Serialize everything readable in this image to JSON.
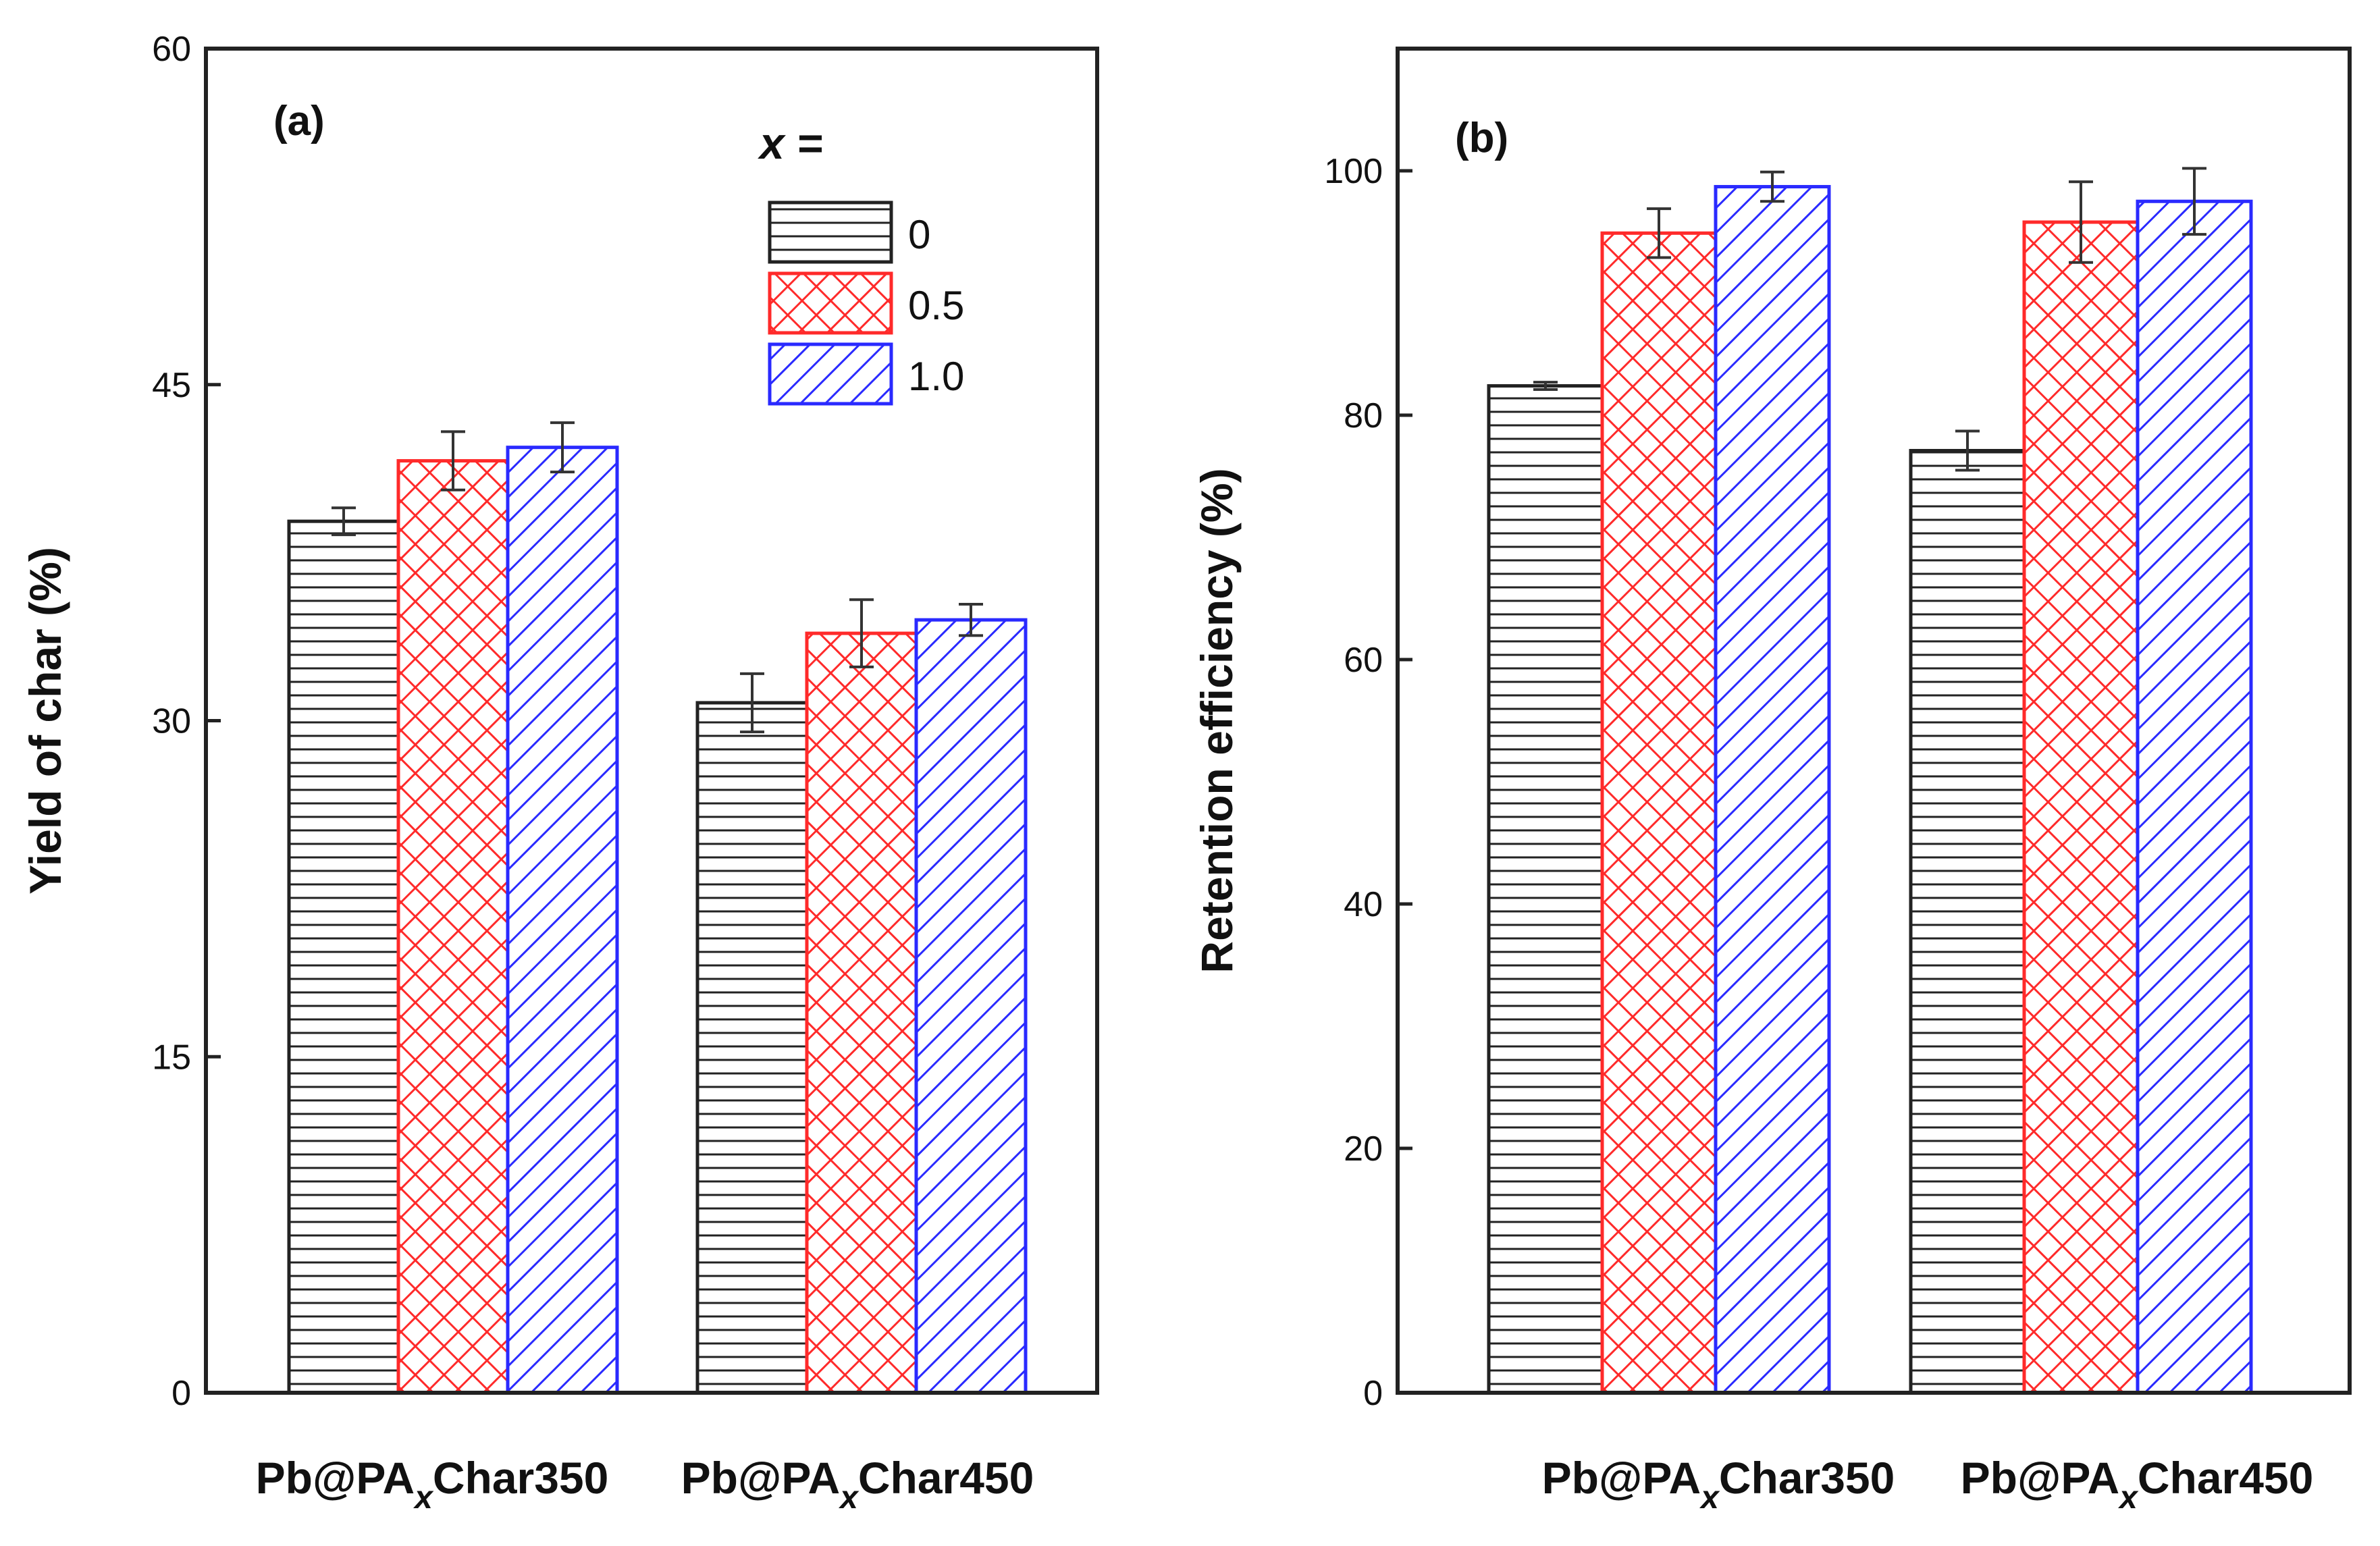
{
  "chart_data": [
    {
      "type": "bar",
      "panel_label": "(a)",
      "ylabel": "Yield of char (%)",
      "ylim": [
        0,
        60
      ],
      "yticks": [
        0,
        15,
        30,
        45,
        60
      ],
      "categories": [
        {
          "prefix": "Pb@PA",
          "sub": "x",
          "suffix": "Char350"
        },
        {
          "prefix": "Pb@PA",
          "sub": "x",
          "suffix": "Char450"
        }
      ],
      "series": [
        {
          "name": "0",
          "color": "#222222",
          "pattern": "horizontal-lines",
          "values": [
            38.9,
            30.8
          ],
          "errors": [
            0.6,
            1.3
          ]
        },
        {
          "name": "0.5",
          "color": "#ff2a2a",
          "pattern": "crosshatch",
          "values": [
            41.6,
            33.9
          ],
          "errors": [
            1.3,
            1.5
          ]
        },
        {
          "name": "1.0",
          "color": "#2a2aff",
          "pattern": "diagonal-lines",
          "values": [
            42.2,
            34.5
          ],
          "errors": [
            1.1,
            0.7
          ]
        }
      ],
      "legend": {
        "title": "x =",
        "position": "top-right"
      }
    },
    {
      "type": "bar",
      "panel_label": "(b)",
      "ylabel": "Retention efficiency (%)",
      "ylim": [
        0,
        110
      ],
      "yticks": [
        0,
        20,
        40,
        60,
        80,
        100
      ],
      "categories": [
        {
          "prefix": "Pb@PA",
          "sub": "x",
          "suffix": "Char350"
        },
        {
          "prefix": "Pb@PA",
          "sub": "x",
          "suffix": "Char450"
        }
      ],
      "series": [
        {
          "name": "0",
          "color": "#222222",
          "pattern": "horizontal-lines",
          "values": [
            82.4,
            77.1
          ],
          "errors": [
            0.3,
            1.6
          ]
        },
        {
          "name": "0.5",
          "color": "#ff2a2a",
          "pattern": "crosshatch",
          "values": [
            94.9,
            95.8
          ],
          "errors": [
            2.0,
            3.3
          ]
        },
        {
          "name": "1.0",
          "color": "#2a2aff",
          "pattern": "diagonal-lines",
          "values": [
            98.7,
            97.5
          ],
          "errors": [
            1.2,
            2.7
          ]
        }
      ]
    }
  ]
}
